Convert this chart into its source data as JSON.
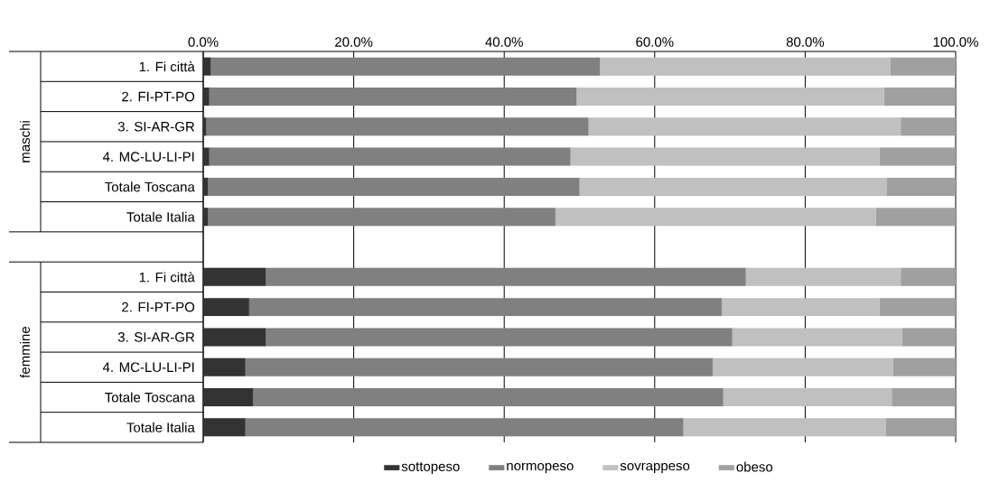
{
  "chart_data": {
    "type": "bar",
    "orientation": "horizontal",
    "stacked": true,
    "categories": [
      "1. Fi città",
      "2. FI-PT-PO",
      "3. SI-AR-GR",
      "4. MC-LU-LI-PI",
      "Totale Toscana",
      "Totale Italia",
      null,
      "1. Fi città",
      "2. FI-PT-PO",
      "3. SI-AR-GR",
      "4. MC-LU-LI-PI",
      "Totale Toscana",
      "Totale Italia"
    ],
    "series": [
      {
        "name": "sottopeso",
        "color": "#333333",
        "values": [
          1.0,
          0.8,
          0.4,
          0.8,
          0.6,
          0.6,
          null,
          8.3,
          6.1,
          8.3,
          5.6,
          6.6,
          5.6
        ]
      },
      {
        "name": "normopeso",
        "color": "#808080",
        "values": [
          51.7,
          48.8,
          50.8,
          48.0,
          49.4,
          46.2,
          null,
          63.8,
          62.8,
          62.0,
          62.1,
          62.5,
          58.2
        ]
      },
      {
        "name": "sovrappeso",
        "color": "#c0c0c0",
        "values": [
          38.6,
          40.9,
          41.5,
          41.1,
          40.8,
          42.6,
          null,
          20.6,
          21.0,
          22.6,
          24.0,
          22.4,
          26.9
        ]
      },
      {
        "name": "obeso",
        "color": "#a0a0a0",
        "values": [
          8.7,
          9.5,
          7.3,
          10.1,
          9.2,
          10.6,
          null,
          7.3,
          10.1,
          7.1,
          8.3,
          8.5,
          9.3
        ]
      }
    ],
    "xlim": [
      0,
      100
    ],
    "xticks": [
      {
        "value": 0,
        "label": "0.0%"
      },
      {
        "value": 20,
        "label": "20.0%"
      },
      {
        "value": 40,
        "label": "40.0%"
      },
      {
        "value": 60,
        "label": "60.0%"
      },
      {
        "value": 80,
        "label": "80.0%"
      },
      {
        "value": 100,
        "label": "100.0%"
      }
    ],
    "grid": "x",
    "legend": "bottom",
    "annotations": [
      "maschi",
      "femmine"
    ]
  }
}
